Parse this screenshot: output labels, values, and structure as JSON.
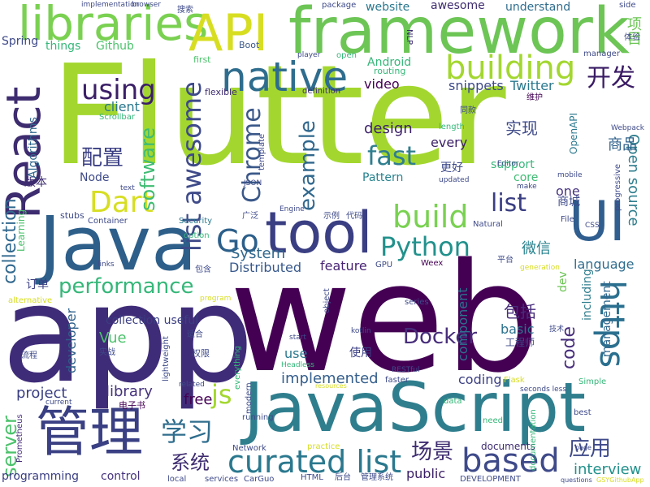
{
  "words": [
    {
      "text": "Flutter",
      "color": "#a3d72f"
    },
    {
      "text": "web",
      "color": "#440154"
    },
    {
      "text": "app",
      "color": "#3f2c78"
    },
    {
      "text": "JavaScript",
      "color": "#2f7e8e"
    },
    {
      "text": "Java",
      "color": "#2d5f8a"
    },
    {
      "text": "framework",
      "color": "#6cc555"
    },
    {
      "text": "tool",
      "color": "#3a3e82"
    },
    {
      "text": "React",
      "color": "#3e2c70"
    },
    {
      "text": "libraries",
      "color": "#7ad151"
    },
    {
      "text": "API",
      "color": "#d7de22"
    },
    {
      "text": "UI",
      "color": "#2f5e8f"
    },
    {
      "text": "native",
      "color": "#2f6d8e"
    },
    {
      "text": "管理",
      "color": "#3a4083"
    },
    {
      "text": "building",
      "color": "#a3d72f"
    },
    {
      "text": "curated list",
      "color": "#2a788e"
    },
    {
      "text": "https",
      "color": "#2a6f8f"
    },
    {
      "text": "Dart",
      "color": "#d7de22"
    },
    {
      "text": "Go",
      "color": "#2c5f8a"
    },
    {
      "text": "build",
      "color": "#79d151"
    },
    {
      "text": "Python",
      "color": "#21918c"
    },
    {
      "text": "list awesome",
      "color": "#3e4a89"
    },
    {
      "text": "using",
      "color": "#3b1f67"
    },
    {
      "text": "based",
      "color": "#3e4a89"
    },
    {
      "text": "Chrome",
      "color": "#3b5889"
    },
    {
      "text": "example",
      "color": "#31688e"
    },
    {
      "text": "fast",
      "color": "#2f7e8e"
    },
    {
      "text": "software",
      "color": "#3fbc73"
    },
    {
      "text": "performance",
      "color": "#35b779"
    },
    {
      "text": "list",
      "color": "#3a3e82"
    },
    {
      "text": "开发",
      "color": "#3a1b64"
    },
    {
      "text": "学习",
      "color": "#2f6d8e"
    },
    {
      "text": "配置",
      "color": "#3a3e82"
    },
    {
      "text": "js",
      "color": "#a3d72f"
    },
    {
      "text": "collection",
      "color": "#31688e"
    },
    {
      "text": "Docker",
      "color": "#472d7b"
    },
    {
      "text": "应用",
      "color": "#3e4a89"
    },
    {
      "text": "server",
      "color": "#4cc26c"
    },
    {
      "text": "场景",
      "color": "#3e2c70"
    },
    {
      "text": "Open source",
      "color": "#2f7e8e"
    },
    {
      "text": "code",
      "color": "#472d7b"
    },
    {
      "text": "系统",
      "color": "#3e2c70"
    },
    {
      "text": "interview",
      "color": "#21918c"
    },
    {
      "text": "微信",
      "color": "#26828e"
    },
    {
      "text": "包括",
      "color": "#472d7b"
    },
    {
      "text": "实现",
      "color": "#3e4a89"
    },
    {
      "text": "商品",
      "color": "#2d5f8a"
    },
    {
      "text": "项目",
      "color": "#6cc555"
    },
    {
      "text": "System",
      "color": "#31688e"
    },
    {
      "text": "feature",
      "color": "#482475"
    },
    {
      "text": "Distributed",
      "color": "#38598c"
    },
    {
      "text": "design",
      "color": "#3b1f67"
    },
    {
      "text": "implemented",
      "color": "#355f8d"
    },
    {
      "text": "library",
      "color": "#46337e"
    },
    {
      "text": "free",
      "color": "#440154"
    },
    {
      "text": "project",
      "color": "#3a3e82"
    },
    {
      "text": "language",
      "color": "#2f6d8e"
    },
    {
      "text": "Vue",
      "color": "#4cc26c"
    },
    {
      "text": "basic",
      "color": "#2c728e"
    },
    {
      "text": "developer",
      "color": "#2d5f8a"
    },
    {
      "text": "component",
      "color": "#2c728e"
    },
    {
      "text": "client",
      "color": "#2a788e"
    },
    {
      "text": "snippets",
      "color": "#3e4a89"
    },
    {
      "text": "Twitter",
      "color": "#2a788e"
    },
    {
      "text": "every",
      "color": "#3b1f67"
    },
    {
      "text": "Pattern",
      "color": "#26828e"
    },
    {
      "text": "coding",
      "color": "#3a3e82"
    },
    {
      "text": "use",
      "color": "#2a788e"
    },
    {
      "text": "video",
      "color": "#440154"
    },
    {
      "text": "support",
      "color": "#35b779"
    },
    {
      "text": "core",
      "color": "#3fbc73"
    },
    {
      "text": "one",
      "color": "#46337e"
    },
    {
      "text": "Android",
      "color": "#35b779"
    },
    {
      "text": "website",
      "color": "#2a788e"
    },
    {
      "text": "awesome",
      "color": "#3e2c70"
    },
    {
      "text": "understand",
      "color": "#2f6d8e"
    },
    {
      "text": "things",
      "color": "#35b779"
    },
    {
      "text": "Github",
      "color": "#4cc26c"
    },
    {
      "text": "Spring",
      "color": "#3e4a89"
    },
    {
      "text": "Node",
      "color": "#3e4a89"
    },
    {
      "text": "版本",
      "color": "#3e2c70"
    },
    {
      "text": "使用",
      "color": "#3a3e82"
    },
    {
      "text": "更好",
      "color": "#3e4a89"
    },
    {
      "text": "订单",
      "color": "#3a3e82"
    },
    {
      "text": "工程师",
      "color": "#3e4a89"
    },
    {
      "text": "商城",
      "color": "#3e4a89"
    },
    {
      "text": "management",
      "color": "#31688e"
    },
    {
      "text": "including",
      "color": "#2f7e8e"
    },
    {
      "text": "dev",
      "color": "#6cc555"
    },
    {
      "text": "Algorithms",
      "color": "#31688e"
    },
    {
      "text": "Learning",
      "color": "#4cc26c"
    },
    {
      "text": "collection useful",
      "color": "#3a3e82"
    },
    {
      "text": "documents",
      "color": "#3e2c70"
    },
    {
      "text": "public",
      "color": "#3b1f67"
    },
    {
      "text": "control",
      "color": "#46337e"
    },
    {
      "text": "programming",
      "color": "#3a3e82"
    },
    {
      "text": "Prometheus",
      "color": "#472d7b"
    },
    {
      "text": "Boot",
      "color": "#3b5889"
    },
    {
      "text": "first",
      "color": "#4cc26c"
    },
    {
      "text": "flexible",
      "color": "#3e2c70"
    },
    {
      "text": "routing",
      "color": "#35b779"
    },
    {
      "text": "NLP",
      "color": "#3e2c70"
    },
    {
      "text": "package",
      "color": "#3e4a89"
    },
    {
      "text": "implementation",
      "color": "#3e4a89"
    },
    {
      "text": "browser",
      "color": "#3e4a89"
    },
    {
      "text": "搜索",
      "color": "#3e4a89"
    },
    {
      "text": "side",
      "color": "#3e4a89"
    },
    {
      "text": "体验",
      "color": "#3e4a89"
    },
    {
      "text": "manager",
      "color": "#3e4a89"
    },
    {
      "text": "player",
      "color": "#3e4a89"
    },
    {
      "text": "open",
      "color": "#35b779"
    },
    {
      "text": "definition",
      "color": "#3e2c70"
    },
    {
      "text": "Scrollbar",
      "color": "#35b779"
    },
    {
      "text": "同款",
      "color": "#3e4a89"
    },
    {
      "text": "维护",
      "color": "#440154"
    },
    {
      "text": "Webpack",
      "color": "#3e4a89"
    },
    {
      "text": "OpenAPI",
      "color": "#2a788e"
    },
    {
      "text": "mobile",
      "color": "#3e4a89"
    },
    {
      "text": "progressive",
      "color": "#3e4a89"
    },
    {
      "text": "make",
      "color": "#3e4a89"
    },
    {
      "text": "Editor",
      "color": "#3e4a89"
    },
    {
      "text": "length",
      "color": "#35b779"
    },
    {
      "text": "updated",
      "color": "#3e4a89"
    },
    {
      "text": "template",
      "color": "#3e4a89"
    },
    {
      "text": "JSON",
      "color": "#3e4a89"
    },
    {
      "text": "text",
      "color": "#3e4a89"
    },
    {
      "text": "stubs",
      "color": "#3e4a89"
    },
    {
      "text": "Container",
      "color": "#3e4a89"
    },
    {
      "text": "Security",
      "color": "#2a788e"
    },
    {
      "text": "option",
      "color": "#35b779"
    },
    {
      "text": "广泛",
      "color": "#3e4a89"
    },
    {
      "text": "示例",
      "color": "#3e4a89"
    },
    {
      "text": "代码",
      "color": "#3e4a89"
    },
    {
      "text": "Engine",
      "color": "#3e4a89"
    },
    {
      "text": "GPU",
      "color": "#3e4a89"
    },
    {
      "text": "Weex",
      "color": "#440154"
    },
    {
      "text": "平台",
      "color": "#3e4a89"
    },
    {
      "text": "File",
      "color": "#3e4a89"
    },
    {
      "text": "CSS",
      "color": "#3e4a89"
    },
    {
      "text": "Natural",
      "color": "#3e4a89"
    },
    {
      "text": "generation",
      "color": "#d7de22"
    },
    {
      "text": "links",
      "color": "#3e4a89"
    },
    {
      "text": "包含",
      "color": "#3e4a89"
    },
    {
      "text": "alternative",
      "color": "#d7de22"
    },
    {
      "text": "program",
      "color": "#d7de22"
    },
    {
      "text": "object",
      "color": "#3e4a89"
    },
    {
      "text": "series",
      "color": "#3e4a89"
    },
    {
      "text": "kotlin",
      "color": "#3e4a89"
    },
    {
      "text": "RESTful",
      "color": "#3e4a89"
    },
    {
      "text": "技术",
      "color": "#3e4a89"
    },
    {
      "text": "适合",
      "color": "#3e4a89"
    },
    {
      "text": "权限",
      "color": "#3e4a89"
    },
    {
      "text": "流程",
      "color": "#3e4a89"
    },
    {
      "text": "实战",
      "color": "#3e4a89"
    },
    {
      "text": "lightweight",
      "color": "#3e4a89"
    },
    {
      "text": "start",
      "color": "#3e4a89"
    },
    {
      "text": "Headless",
      "color": "#35b779"
    },
    {
      "text": "faster",
      "color": "#3e4a89"
    },
    {
      "text": "Simple",
      "color": "#35b779"
    },
    {
      "text": "Flask",
      "color": "#d7de22"
    },
    {
      "text": "related",
      "color": "#3e4a89"
    },
    {
      "text": "everything",
      "color": "#35b779"
    },
    {
      "text": "modern",
      "color": "#3e4a89"
    },
    {
      "text": "电子书",
      "color": "#440154"
    },
    {
      "text": "current",
      "color": "#3e4a89"
    },
    {
      "text": "running",
      "color": "#3e4a89"
    },
    {
      "text": "resources",
      "color": "#d7de22"
    },
    {
      "text": "data",
      "color": "#35b779"
    },
    {
      "text": "seconds less",
      "color": "#3e4a89"
    },
    {
      "text": "need",
      "color": "#35b779"
    },
    {
      "text": "best",
      "color": "#3e4a89"
    },
    {
      "text": "documentation",
      "color": "#35b779"
    },
    {
      "text": "Network",
      "color": "#3e4a89"
    },
    {
      "text": "practice",
      "color": "#d7de22"
    },
    {
      "text": "services",
      "color": "#3e4a89"
    },
    {
      "text": "CarGuo",
      "color": "#3e4a89"
    },
    {
      "text": "HTML",
      "color": "#3e4a89"
    },
    {
      "text": "后台",
      "color": "#3e4a89"
    },
    {
      "text": "管理系统",
      "color": "#3e4a89"
    },
    {
      "text": "DEVELOPMENT",
      "color": "#3e4a89"
    },
    {
      "text": "local",
      "color": "#3e4a89"
    },
    {
      "text": "questions",
      "color": "#3e4a89"
    },
    {
      "text": "GSYGithubApp",
      "color": "#d7de22"
    },
    {
      "text": "page",
      "color": "#3e4a89"
    }
  ]
}
